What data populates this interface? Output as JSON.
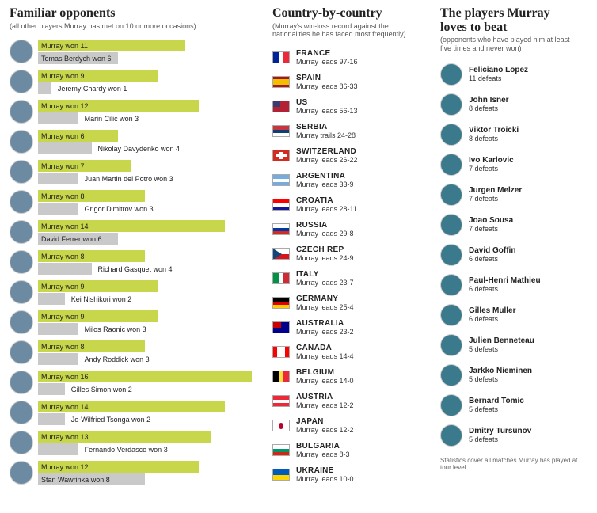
{
  "colors": {
    "murray_bar": "#c7d64a",
    "opponent_bar": "#c9c9c9",
    "avatar_bg": "#6d8aa3",
    "avatar2_bg": "#3a7a8c",
    "text": "#222222",
    "subtext": "#555555"
  },
  "familiar": {
    "title": "Familiar opponents",
    "subtitle": "(all other players Murray has met on 10 or more occasions)",
    "max": 16,
    "rows": [
      {
        "opponent": "Tomas Berdych",
        "murray_wins": 11,
        "opponent_wins": 6
      },
      {
        "opponent": "Jeremy Chardy",
        "murray_wins": 9,
        "opponent_wins": 1
      },
      {
        "opponent": "Marin Cilic",
        "murray_wins": 12,
        "opponent_wins": 3
      },
      {
        "opponent": "Nikolay Davydenko",
        "murray_wins": 6,
        "opponent_wins": 4
      },
      {
        "opponent": "Juan Martin del Potro",
        "murray_wins": 7,
        "opponent_wins": 3
      },
      {
        "opponent": "Grigor Dimitrov",
        "murray_wins": 8,
        "opponent_wins": 3
      },
      {
        "opponent": "David Ferrer",
        "murray_wins": 14,
        "opponent_wins": 6
      },
      {
        "opponent": "Richard Gasquet",
        "murray_wins": 8,
        "opponent_wins": 4
      },
      {
        "opponent": "Kei Nishikori",
        "murray_wins": 9,
        "opponent_wins": 2
      },
      {
        "opponent": "Milos Raonic",
        "murray_wins": 9,
        "opponent_wins": 3
      },
      {
        "opponent": "Andy Roddick",
        "murray_wins": 8,
        "opponent_wins": 3
      },
      {
        "opponent": "Gilles Simon",
        "murray_wins": 16,
        "opponent_wins": 2
      },
      {
        "opponent": "Jo-Wilfried Tsonga",
        "murray_wins": 14,
        "opponent_wins": 2
      },
      {
        "opponent": "Fernando Verdasco",
        "murray_wins": 13,
        "opponent_wins": 3
      },
      {
        "opponent": "Stan Wawrinka",
        "murray_wins": 12,
        "opponent_wins": 8
      }
    ]
  },
  "country": {
    "title": "Country-by-country",
    "subtitle": "(Murray's win-loss record against the nationalities he has faced most frequently)",
    "rows": [
      {
        "name": "FRANCE",
        "record": "Murray leads 97-16",
        "flag": [
          [
            "v",
            "#002395",
            0,
            33
          ],
          [
            "v",
            "#ffffff",
            33,
            34
          ],
          [
            "v",
            "#ed2939",
            67,
            33
          ]
        ]
      },
      {
        "name": "SPAIN",
        "record": "Murray leads 86-33",
        "flag": [
          [
            "h",
            "#aa151b",
            0,
            25
          ],
          [
            "h",
            "#f1bf00",
            25,
            50
          ],
          [
            "h",
            "#aa151b",
            75,
            25
          ]
        ]
      },
      {
        "name": "US",
        "record": "Murray leads 56-13",
        "flag": [
          [
            "h",
            "#b22234",
            0,
            100
          ],
          [
            "r",
            "#3c3b6e",
            0,
            0,
            45,
            54
          ]
        ]
      },
      {
        "name": "SERBIA",
        "record": "Murray trails 24-28",
        "flag": [
          [
            "h",
            "#c6363c",
            0,
            34
          ],
          [
            "h",
            "#0c4076",
            34,
            33
          ],
          [
            "h",
            "#ffffff",
            67,
            33
          ]
        ]
      },
      {
        "name": "SWITZERLAND",
        "record": "Murray leads 26-22",
        "flag": [
          [
            "h",
            "#d52b1e",
            0,
            100
          ],
          [
            "r",
            "#ffffff",
            40,
            15,
            20,
            70
          ],
          [
            "r",
            "#ffffff",
            15,
            40,
            70,
            20
          ]
        ]
      },
      {
        "name": "ARGENTINA",
        "record": "Murray leads 33-9",
        "flag": [
          [
            "h",
            "#74acdf",
            0,
            34
          ],
          [
            "h",
            "#ffffff",
            34,
            33
          ],
          [
            "h",
            "#74acdf",
            67,
            33
          ]
        ]
      },
      {
        "name": "CROATIA",
        "record": "Murray leads 28-11",
        "flag": [
          [
            "h",
            "#ff0000",
            0,
            34
          ],
          [
            "h",
            "#ffffff",
            34,
            33
          ],
          [
            "h",
            "#171796",
            67,
            33
          ]
        ]
      },
      {
        "name": "RUSSIA",
        "record": "Murray leads 29-8",
        "flag": [
          [
            "h",
            "#ffffff",
            0,
            34
          ],
          [
            "h",
            "#0039a6",
            34,
            33
          ],
          [
            "h",
            "#d52b1e",
            67,
            33
          ]
        ]
      },
      {
        "name": "CZECH REP",
        "record": "Murray leads 24-9",
        "flag": [
          [
            "h",
            "#ffffff",
            0,
            50
          ],
          [
            "h",
            "#d7141a",
            50,
            50
          ],
          [
            "t",
            "#11457e"
          ]
        ]
      },
      {
        "name": "ITALY",
        "record": "Murray leads 23-7",
        "flag": [
          [
            "v",
            "#009246",
            0,
            33
          ],
          [
            "v",
            "#ffffff",
            33,
            34
          ],
          [
            "v",
            "#ce2b37",
            67,
            33
          ]
        ]
      },
      {
        "name": "GERMANY",
        "record": "Murray leads 25-4",
        "flag": [
          [
            "h",
            "#000000",
            0,
            34
          ],
          [
            "h",
            "#dd0000",
            34,
            33
          ],
          [
            "h",
            "#ffce00",
            67,
            33
          ]
        ]
      },
      {
        "name": "AUSTRALIA",
        "record": "Murray leads 23-2",
        "flag": [
          [
            "h",
            "#00008b",
            0,
            100
          ],
          [
            "r",
            "#cc0000",
            0,
            0,
            50,
            50
          ]
        ]
      },
      {
        "name": "CANADA",
        "record": "Murray leads 14-4",
        "flag": [
          [
            "v",
            "#ff0000",
            0,
            25
          ],
          [
            "v",
            "#ffffff",
            25,
            50
          ],
          [
            "v",
            "#ff0000",
            75,
            25
          ]
        ]
      },
      {
        "name": "BELGIUM",
        "record": "Murray leads 14-0",
        "flag": [
          [
            "v",
            "#000000",
            0,
            33
          ],
          [
            "v",
            "#fae042",
            33,
            34
          ],
          [
            "v",
            "#ed2939",
            67,
            33
          ]
        ]
      },
      {
        "name": "AUSTRIA",
        "record": "Murray leads 12-2",
        "flag": [
          [
            "h",
            "#ed2939",
            0,
            34
          ],
          [
            "h",
            "#ffffff",
            34,
            33
          ],
          [
            "h",
            "#ed2939",
            67,
            33
          ]
        ]
      },
      {
        "name": "JAPAN",
        "record": "Murray leads 12-2",
        "flag": [
          [
            "h",
            "#ffffff",
            0,
            100
          ],
          [
            "c",
            "#bc002d"
          ]
        ]
      },
      {
        "name": "BULGARIA",
        "record": "Murray leads 8-3",
        "flag": [
          [
            "h",
            "#ffffff",
            0,
            34
          ],
          [
            "h",
            "#00966e",
            34,
            33
          ],
          [
            "h",
            "#d62612",
            67,
            33
          ]
        ]
      },
      {
        "name": "UKRAINE",
        "record": "Murray leads 10-0",
        "flag": [
          [
            "h",
            "#005bbb",
            0,
            50
          ],
          [
            "h",
            "#ffd500",
            50,
            50
          ]
        ]
      }
    ]
  },
  "beat": {
    "title": "The players Murray loves to beat",
    "subtitle": "(opponents who have played him at least five times and never won)",
    "rows": [
      {
        "name": "Feliciano Lopez",
        "defeats": "11 defeats"
      },
      {
        "name": "John Isner",
        "defeats": "8 defeats"
      },
      {
        "name": "Viktor Troicki",
        "defeats": "8 defeats"
      },
      {
        "name": "Ivo Karlovic",
        "defeats": "7 defeats"
      },
      {
        "name": "Jurgen Melzer",
        "defeats": "7 defeats"
      },
      {
        "name": "Joao Sousa",
        "defeats": "7 defeats"
      },
      {
        "name": "David Goffin",
        "defeats": "6 defeats"
      },
      {
        "name": "Paul-Henri Mathieu",
        "defeats": "6 defeats"
      },
      {
        "name": "Gilles Muller",
        "defeats": "6 defeats"
      },
      {
        "name": "Julien Benneteau",
        "defeats": "5 defeats"
      },
      {
        "name": "Jarkko Nieminen",
        "defeats": "5 defeats"
      },
      {
        "name": "Bernard Tomic",
        "defeats": "5 defeats"
      },
      {
        "name": "Dmitry Tursunov",
        "defeats": "5 defeats"
      }
    ],
    "footnote": "Statistics cover all matches Murray has played at tour level"
  }
}
